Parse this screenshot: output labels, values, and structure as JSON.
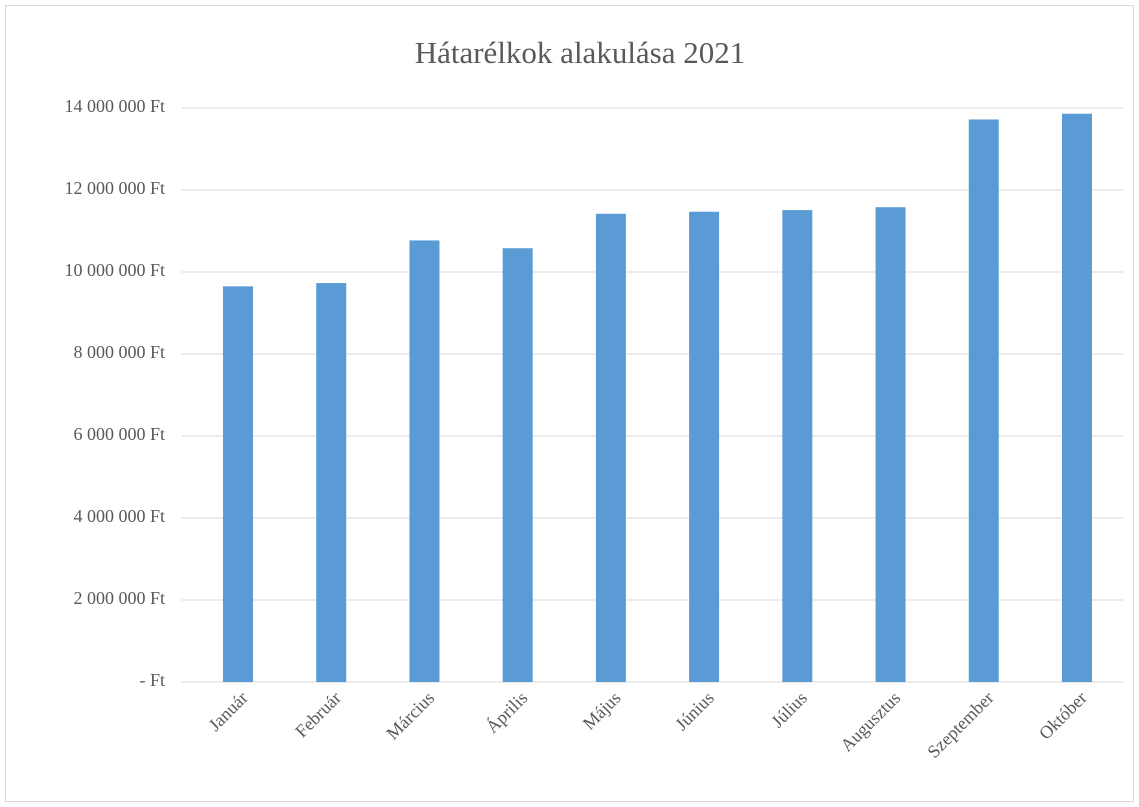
{
  "chart_data": {
    "type": "bar",
    "title": "Hátarélkok alakulása 2021",
    "categories": [
      "Január",
      "Február",
      "Március",
      "Április",
      "Május",
      "Június",
      "Július",
      "Augusztus",
      "Szeptember",
      "Október"
    ],
    "values": [
      9650000,
      9730000,
      10770000,
      10580000,
      11420000,
      11470000,
      11510000,
      11580000,
      13720000,
      13860000
    ],
    "color": "#5b9bd5",
    "ylim": [
      0,
      14000000
    ],
    "yticks": [
      {
        "value": 0,
        "label": "-   Ft"
      },
      {
        "value": 2000000,
        "label": "2 000 000 Ft"
      },
      {
        "value": 4000000,
        "label": "4 000 000 Ft"
      },
      {
        "value": 6000000,
        "label": "6 000 000 Ft"
      },
      {
        "value": 8000000,
        "label": "8 000 000 Ft"
      },
      {
        "value": 10000000,
        "label": "10 000 000 Ft"
      },
      {
        "value": 12000000,
        "label": "12 000 000 Ft"
      },
      {
        "value": 14000000,
        "label": "14 000 000 Ft"
      }
    ],
    "grid": true
  }
}
